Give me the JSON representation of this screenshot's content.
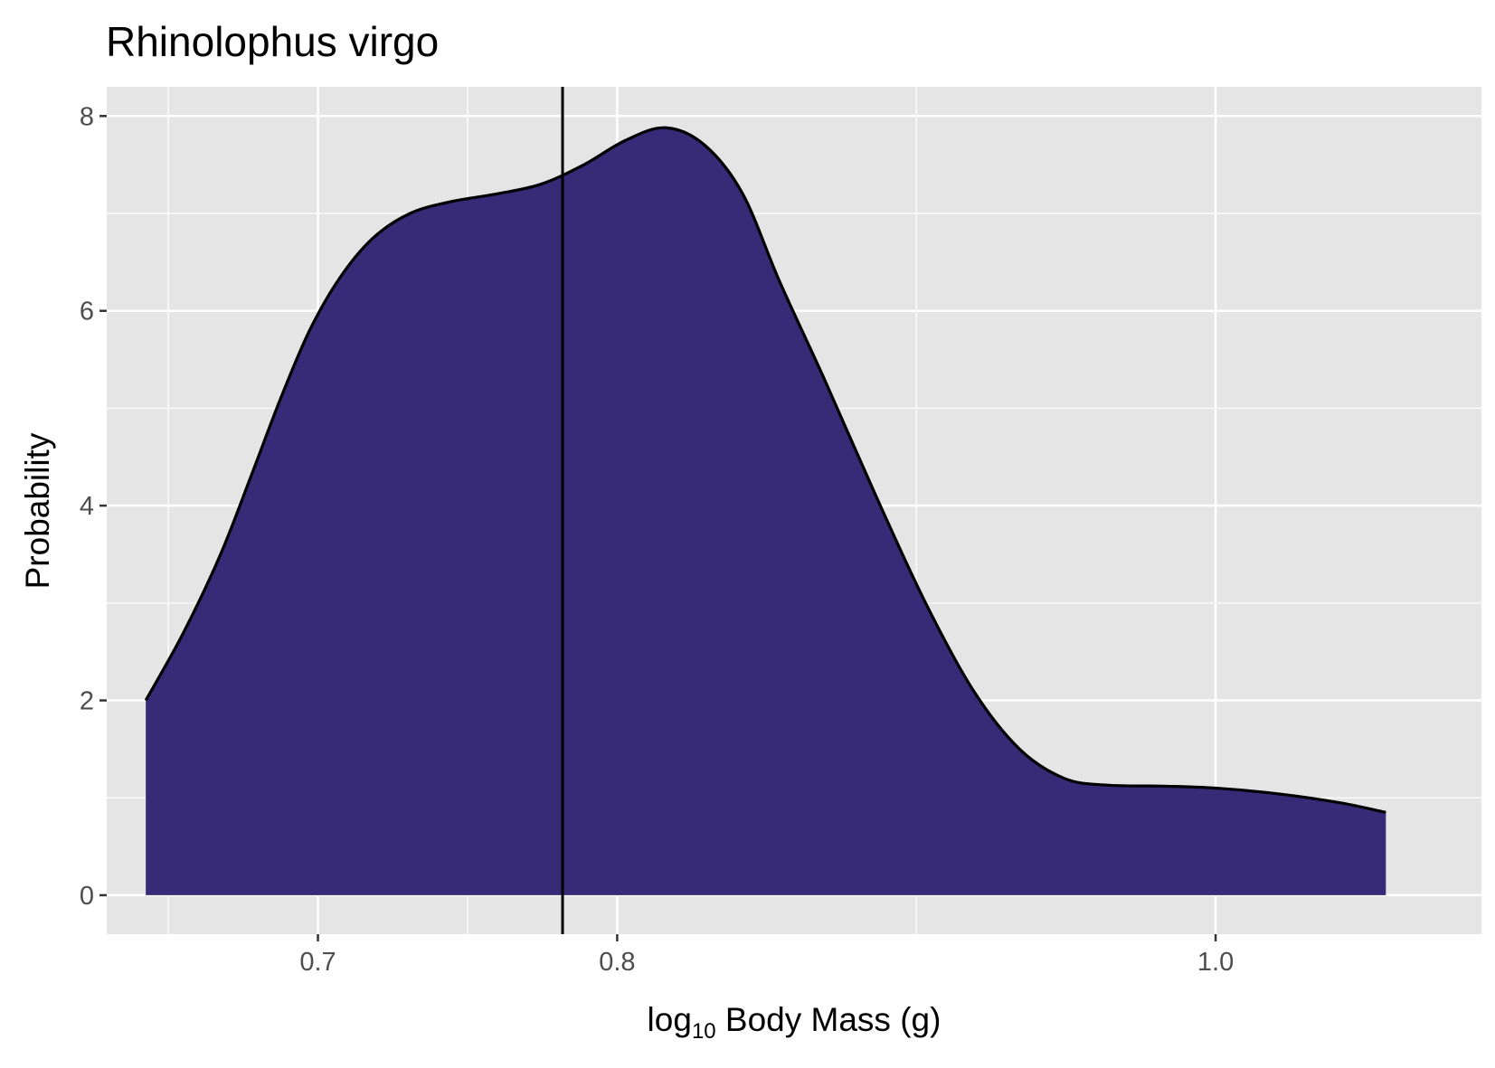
{
  "chart_data": {
    "type": "area",
    "title": "Rhinolophus virgo",
    "xlabel": {
      "prefix": "log",
      "subscript": "10",
      "suffix": " Body Mass (g)"
    },
    "ylabel": "Probability",
    "x_scale": "log",
    "x_ticks": [
      {
        "value": 5.0119,
        "label": "0.7"
      },
      {
        "value": 6.3096,
        "label": "0.8"
      },
      {
        "value": 10.0,
        "label": "1.0"
      }
    ],
    "x_range": [
      4.26,
      12.27
    ],
    "y_ticks": [
      0,
      2,
      4,
      6,
      8
    ],
    "y_range": [
      -0.4,
      8.3
    ],
    "grid": true,
    "fill_color": "#372a77",
    "line_color": "#000000",
    "background_color": "#e5e5e5",
    "vline": {
      "x": 6.05
    },
    "series": [
      {
        "points": [
          [
            4.39,
            2.0
          ],
          [
            4.52,
            2.7
          ],
          [
            4.65,
            3.5
          ],
          [
            4.76,
            4.3
          ],
          [
            4.87,
            5.1
          ],
          [
            4.98,
            5.8
          ],
          [
            5.1,
            6.35
          ],
          [
            5.23,
            6.75
          ],
          [
            5.38,
            7.0
          ],
          [
            5.55,
            7.12
          ],
          [
            5.75,
            7.2
          ],
          [
            5.95,
            7.3
          ],
          [
            6.15,
            7.5
          ],
          [
            6.35,
            7.75
          ],
          [
            6.55,
            7.88
          ],
          [
            6.75,
            7.7
          ],
          [
            6.95,
            7.2
          ],
          [
            7.15,
            6.3
          ],
          [
            7.4,
            5.3
          ],
          [
            7.7,
            4.1
          ],
          [
            8.0,
            3.0
          ],
          [
            8.3,
            2.1
          ],
          [
            8.6,
            1.5
          ],
          [
            8.9,
            1.2
          ],
          [
            9.2,
            1.13
          ],
          [
            9.6,
            1.12
          ],
          [
            10.0,
            1.1
          ],
          [
            10.5,
            1.04
          ],
          [
            11.0,
            0.95
          ],
          [
            11.4,
            0.85
          ]
        ]
      }
    ]
  }
}
